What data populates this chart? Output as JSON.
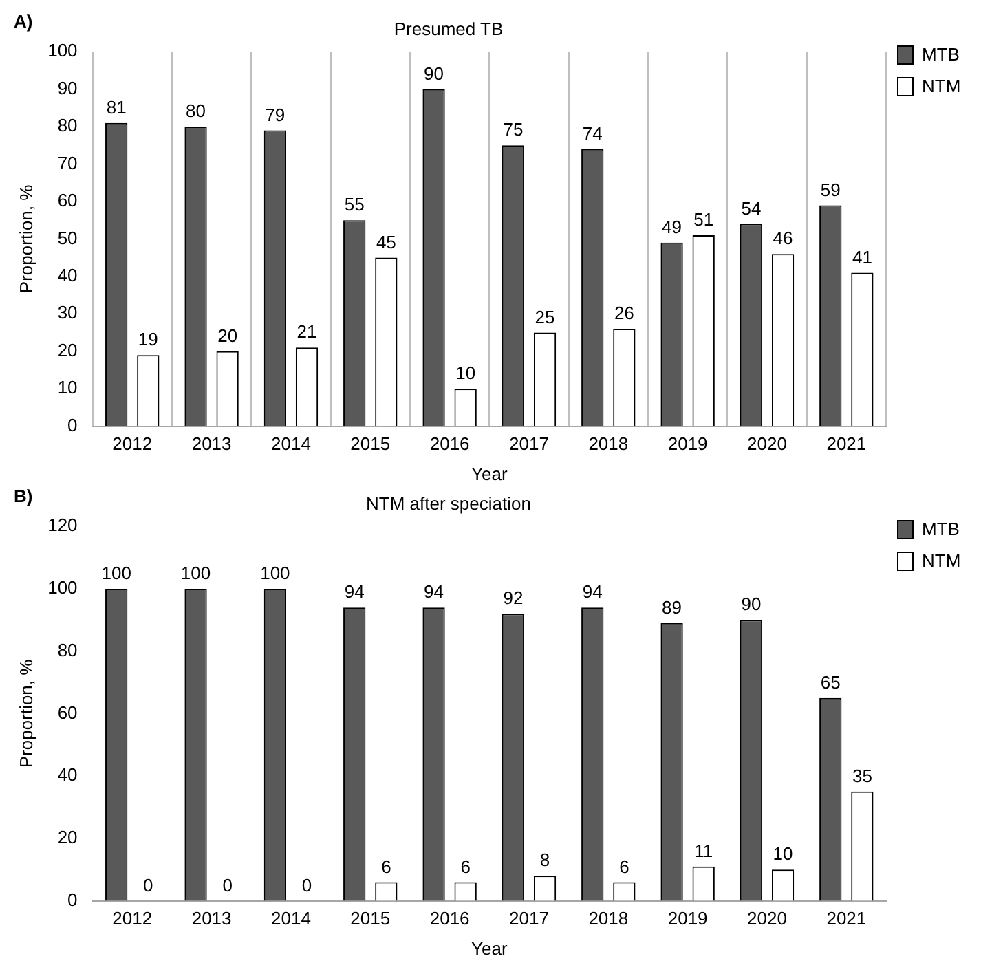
{
  "chart_data": [
    {
      "type": "bar",
      "title": "Presumed TB",
      "xlabel": "Year",
      "ylabel": "Proportion, %",
      "annotations": [
        "A)"
      ],
      "categories": [
        "2012",
        "2013",
        "2014",
        "2015",
        "2016",
        "2017",
        "2018",
        "2019",
        "2020",
        "2021"
      ],
      "series": [
        {
          "name": "MTB",
          "color": "#595959",
          "values": [
            81,
            80,
            79,
            55,
            90,
            75,
            74,
            49,
            54,
            59
          ]
        },
        {
          "name": "NTM",
          "color": "#ffffff",
          "values": [
            19,
            20,
            21,
            45,
            10,
            25,
            26,
            51,
            46,
            41
          ]
        }
      ],
      "ylim": [
        0,
        100
      ],
      "yticks": [
        0,
        10,
        20,
        30,
        40,
        50,
        60,
        70,
        80,
        90,
        100
      ],
      "grid": "x",
      "legend": "right",
      "data_labels": true
    },
    {
      "type": "bar",
      "title": "NTM after speciation",
      "xlabel": "Year",
      "ylabel": "Proportion, %",
      "annotations": [
        "B)"
      ],
      "categories": [
        "2012",
        "2013",
        "2014",
        "2015",
        "2016",
        "2017",
        "2018",
        "2019",
        "2020",
        "2021"
      ],
      "series": [
        {
          "name": "MTB",
          "color": "#595959",
          "values": [
            100,
            100,
            100,
            94,
            94,
            92,
            94,
            89,
            90,
            65
          ]
        },
        {
          "name": "NTM",
          "color": "#ffffff",
          "values": [
            0,
            0,
            0,
            6,
            6,
            8,
            6,
            11,
            10,
            35
          ]
        }
      ],
      "ylim": [
        0,
        120
      ],
      "yticks": [
        0,
        20,
        40,
        60,
        80,
        100,
        120
      ],
      "legend": "right",
      "data_labels": true
    }
  ]
}
